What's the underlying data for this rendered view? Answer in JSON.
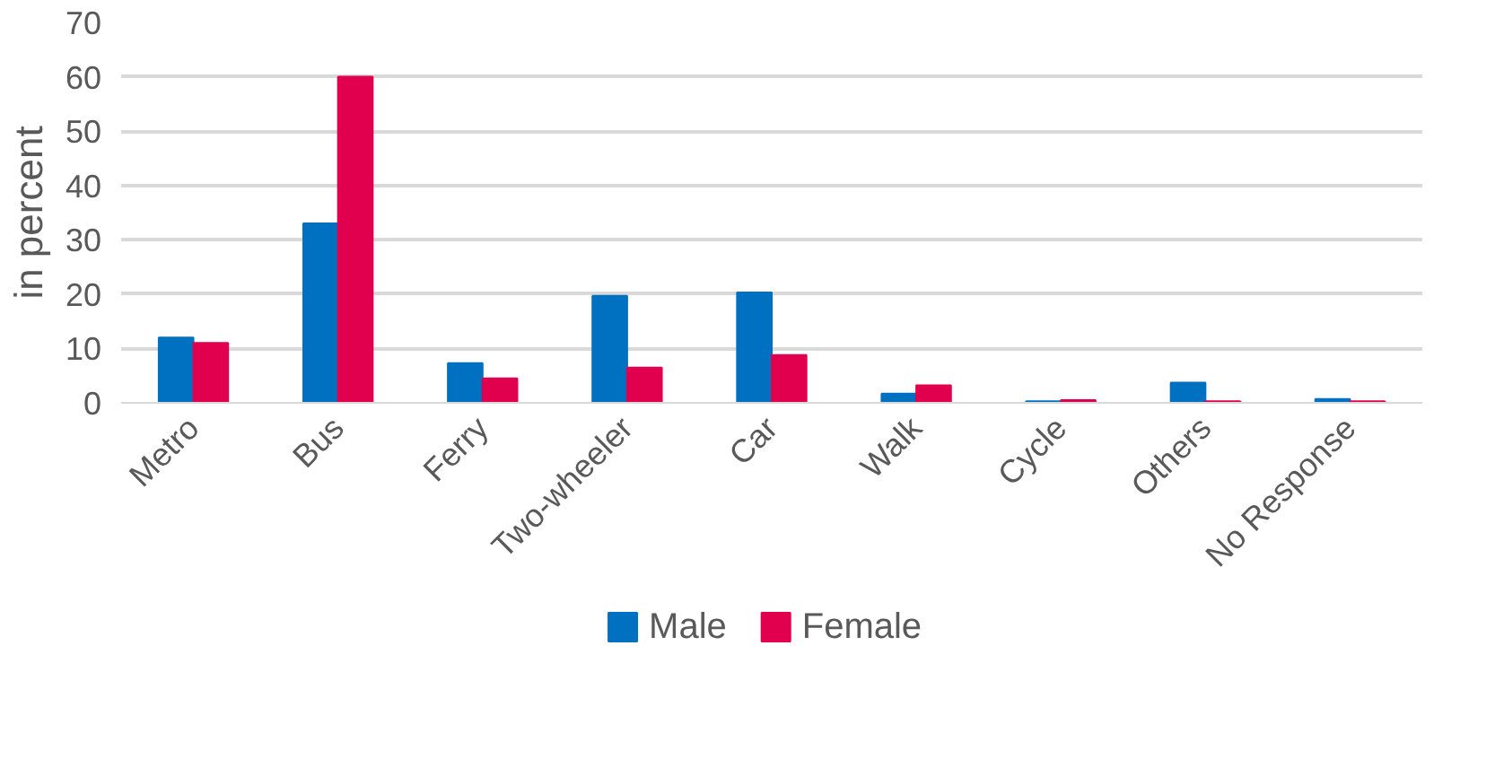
{
  "chart_data": {
    "type": "bar",
    "ylabel": "in percent",
    "categories": [
      "Metro",
      "Bus",
      "Ferry",
      "Two-wheeler",
      "Car",
      "Walk",
      "Cycle",
      "Others",
      "No Response"
    ],
    "series": [
      {
        "name": "Male",
        "color": "#0070c0",
        "values": [
          12,
          33,
          7.3,
          19.7,
          20.3,
          1.7,
          0.3,
          3.7,
          0.7
        ]
      },
      {
        "name": "Female",
        "color": "#e0004d",
        "values": [
          11,
          60,
          4.5,
          6.5,
          8.8,
          3.2,
          0.5,
          0.3,
          0.3
        ]
      }
    ],
    "ylim": [
      0,
      70
    ],
    "yticks": [
      0,
      10,
      20,
      30,
      40,
      50,
      60,
      70
    ],
    "grid": "y",
    "legend": "bottom"
  }
}
